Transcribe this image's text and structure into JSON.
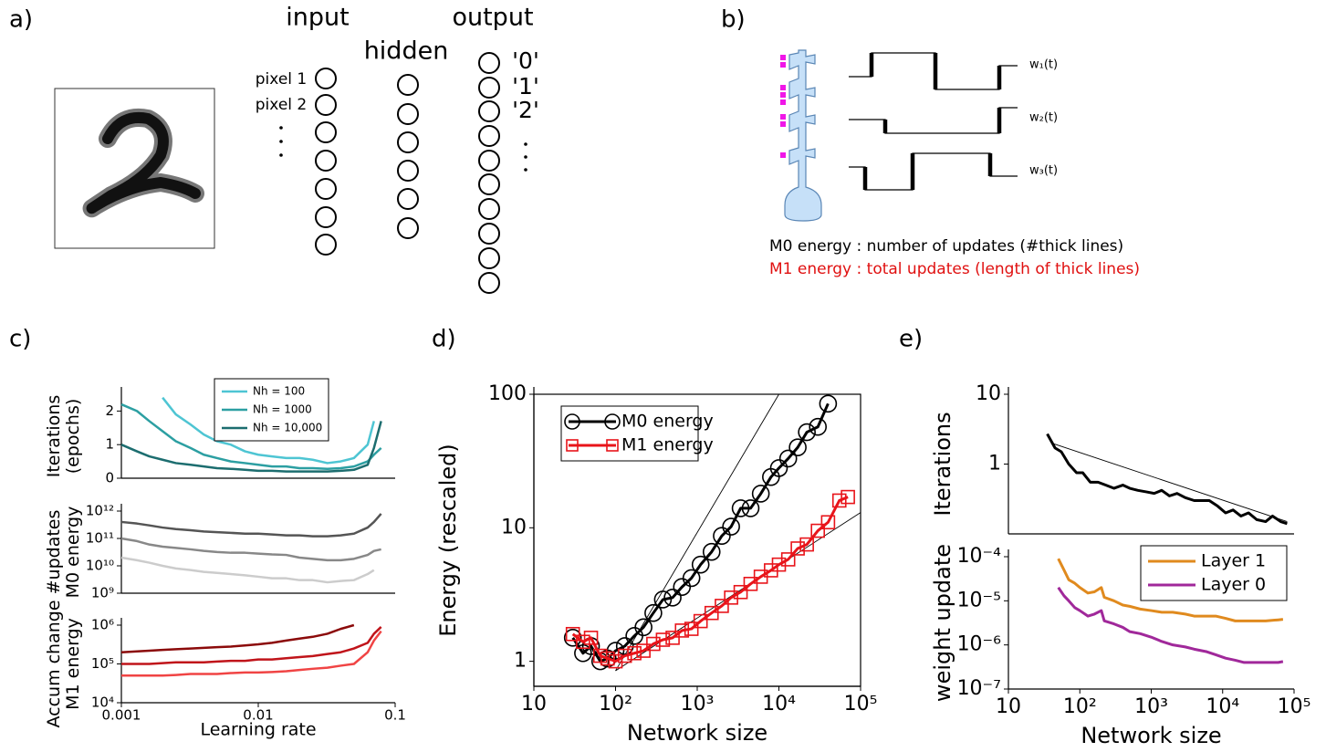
{
  "panel_labels": [
    "a)",
    "b)",
    "c)",
    "d)",
    "e)"
  ],
  "diagram_a": {
    "layers": [
      "input",
      "hidden",
      "output"
    ],
    "inputs": [
      "pixel 1",
      "pixel 2"
    ],
    "outputs": [
      "'0'",
      "'1'",
      "'2'"
    ]
  },
  "diagram_b": {
    "weights": [
      "w₁(t)",
      "w₂(t)",
      "w₃(t)"
    ],
    "m0": "M0 energy : number of updates (#thick lines)",
    "m1": "M1 energy : total updates (length of thick lines)"
  },
  "chart_data": [
    {
      "type": "line",
      "y_label": [
        "Iterations",
        "(epochs)"
      ],
      "xlog": true,
      "xlim": [
        0.001,
        0.1
      ],
      "ylim": [
        0,
        2.5
      ],
      "yticks": [
        0,
        1,
        2
      ],
      "legend": "upper right",
      "x": [
        0.001,
        0.0013,
        0.0016,
        0.002,
        0.0025,
        0.0032,
        0.004,
        0.005,
        0.0063,
        0.008,
        0.01,
        0.0126,
        0.016,
        0.02,
        0.025,
        0.032,
        0.04,
        0.05,
        0.063,
        0.07,
        0.079
      ],
      "series": [
        {
          "name": "Nh = 100",
          "color": "#4ec5d3",
          "values": [
            null,
            null,
            null,
            2.4,
            1.9,
            1.6,
            1.3,
            1.1,
            1.0,
            0.8,
            0.7,
            0.65,
            0.6,
            0.6,
            0.55,
            0.45,
            0.5,
            0.6,
            1.0,
            1.7,
            null
          ]
        },
        {
          "name": "Nh = 1000",
          "color": "#2c9fa2",
          "values": [
            2.2,
            2.0,
            1.7,
            1.4,
            1.1,
            0.9,
            0.7,
            0.6,
            0.5,
            0.45,
            0.4,
            0.35,
            0.35,
            0.3,
            0.3,
            0.28,
            0.3,
            0.35,
            0.5,
            0.7,
            0.9
          ]
        },
        {
          "name": "Nh = 10,000",
          "color": "#1c6d6f",
          "values": [
            1.0,
            0.8,
            0.65,
            0.55,
            0.45,
            0.4,
            0.35,
            0.3,
            0.28,
            0.25,
            0.22,
            0.22,
            0.2,
            0.2,
            0.2,
            0.2,
            0.22,
            0.25,
            0.4,
            0.9,
            1.7
          ]
        }
      ]
    },
    {
      "type": "line",
      "y_label": [
        "#updates",
        "M0 energy"
      ],
      "xlog": true,
      "ylog": true,
      "xlim": [
        0.001,
        0.1
      ],
      "ylim": [
        1000000000.0,
        1000000000000.0
      ],
      "yticks": [
        {
          "value": 1000000000.0,
          "label": "10⁹"
        },
        {
          "value": 10000000000.0,
          "label": "10¹⁰"
        },
        {
          "value": 100000000000.0,
          "label": "10¹¹"
        },
        {
          "value": 1000000000000.0,
          "label": "10¹²"
        }
      ],
      "x": [
        0.001,
        0.0013,
        0.0016,
        0.002,
        0.0025,
        0.0032,
        0.004,
        0.005,
        0.0063,
        0.008,
        0.01,
        0.0126,
        0.016,
        0.02,
        0.025,
        0.032,
        0.04,
        0.05,
        0.063,
        0.07,
        0.079
      ],
      "series": [
        {
          "color": "#555555",
          "values": [
            400000000000.0,
            350000000000.0,
            300000000000.0,
            250000000000.0,
            220000000000.0,
            200000000000.0,
            180000000000.0,
            170000000000.0,
            160000000000.0,
            150000000000.0,
            150000000000.0,
            140000000000.0,
            130000000000.0,
            130000000000.0,
            120000000000.0,
            120000000000.0,
            130000000000.0,
            150000000000.0,
            250000000000.0,
            400000000000.0,
            800000000000.0
          ]
        },
        {
          "color": "#888888",
          "values": [
            100000000000.0,
            80000000000.0,
            60000000000.0,
            50000000000.0,
            45000000000.0,
            40000000000.0,
            35000000000.0,
            32000000000.0,
            30000000000.0,
            30000000000.0,
            28000000000.0,
            26000000000.0,
            25000000000.0,
            20000000000.0,
            18000000000.0,
            16000000000.0,
            16000000000.0,
            18000000000.0,
            25000000000.0,
            35000000000.0,
            40000000000.0
          ]
        },
        {
          "color": "#cccccc",
          "values": [
            20000000000.0,
            16000000000.0,
            13000000000.0,
            10000000000.0,
            8000000000.0,
            7000000000.0,
            6000000000.0,
            5500000000.0,
            5000000000.0,
            4500000000.0,
            4000000000.0,
            3500000000.0,
            3500000000.0,
            3000000000.0,
            3000000000.0,
            2500000000.0,
            2800000000.0,
            3000000000.0,
            5000000000.0,
            7000000000.0,
            null
          ]
        }
      ]
    },
    {
      "type": "line",
      "y_label": [
        "Accum change",
        "M1 energy"
      ],
      "x_label": "Learning rate",
      "xlog": true,
      "ylog": true,
      "xlim": [
        0.001,
        0.1
      ],
      "ylim": [
        10000.0,
        1000000.0
      ],
      "xticks": [
        0.001,
        0.01,
        0.1
      ],
      "yticks": [
        {
          "value": 10000.0,
          "label": "10⁴"
        },
        {
          "value": 100000.0,
          "label": "10⁵"
        },
        {
          "value": 1000000.0,
          "label": "10⁶"
        }
      ],
      "x": [
        0.001,
        0.0013,
        0.0016,
        0.002,
        0.0025,
        0.0032,
        0.004,
        0.005,
        0.0063,
        0.008,
        0.01,
        0.0126,
        0.016,
        0.02,
        0.025,
        0.032,
        0.04,
        0.05,
        0.063,
        0.07,
        0.079
      ],
      "series": [
        {
          "color": "#8b0a0a",
          "values": [
            200000.0,
            210000.0,
            220000.0,
            230000.0,
            240000.0,
            250000.0,
            260000.0,
            270000.0,
            280000.0,
            300000.0,
            320000.0,
            350000.0,
            400000.0,
            450000.0,
            500000.0,
            600000.0,
            800000.0,
            1000000.0,
            null,
            null,
            null
          ]
        },
        {
          "color": "#c0141a",
          "values": [
            100000.0,
            100000.0,
            100000.0,
            105000.0,
            110000.0,
            110000.0,
            110000.0,
            115000.0,
            120000.0,
            120000.0,
            130000.0,
            130000.0,
            140000.0,
            150000.0,
            160000.0,
            180000.0,
            200000.0,
            250000.0,
            350000.0,
            600000.0,
            900000.0
          ]
        },
        {
          "color": "#f04444",
          "values": [
            50000.0,
            50000.0,
            50000.0,
            50000.0,
            52000.0,
            55000.0,
            55000.0,
            55000.0,
            58000.0,
            60000.0,
            60000.0,
            62000.0,
            65000.0,
            70000.0,
            75000.0,
            80000.0,
            90000.0,
            100000.0,
            200000.0,
            400000.0,
            700000.0
          ]
        }
      ]
    },
    {
      "type": "line",
      "x_label": "Network size",
      "y_label": [
        "Energy (rescaled)"
      ],
      "xlog": true,
      "ylog": true,
      "frame": true,
      "legend": "upper left",
      "xlim": [
        10,
        100000
      ],
      "ylim": [
        0.65,
        100
      ],
      "xticks": [
        10,
        {
          "value": 100,
          "label": "10²"
        },
        {
          "value": 1000,
          "label": "10³"
        },
        {
          "value": 10000,
          "label": "10⁴"
        },
        {
          "value": 100000,
          "label": "10⁵"
        }
      ],
      "yticks": [
        1,
        10,
        100
      ],
      "x": [
        30,
        40,
        50,
        65,
        80,
        100,
        130,
        170,
        220,
        290,
        380,
        500,
        650,
        850,
        1100,
        1500,
        2000,
        2600,
        3400,
        4500,
        6000,
        8000,
        10000,
        13000,
        17000,
        22000,
        30000,
        40000
      ],
      "series": [
        {
          "name": "M0 energy",
          "color": "#000000",
          "marker": "circle",
          "values": [
            1.5,
            1.15,
            1.3,
            1.0,
            1.05,
            1.2,
            1.3,
            1.55,
            1.8,
            2.3,
            2.9,
            3.0,
            3.6,
            4.2,
            5.3,
            6.6,
            8.7,
            10.2,
            14,
            14,
            18,
            24,
            28,
            33,
            40,
            52,
            57,
            85
          ]
        },
        {
          "name": "M1 energy",
          "color": "#e8141a",
          "marker": "square",
          "x": [
            30,
            40,
            50,
            65,
            80,
            100,
            130,
            170,
            220,
            290,
            380,
            500,
            650,
            850,
            1100,
            1500,
            2000,
            2600,
            3400,
            4500,
            6000,
            8000,
            10000,
            13000,
            17000,
            22000,
            30000,
            40000,
            55000,
            70000
          ],
          "values": [
            1.6,
            1.4,
            1.5,
            1.1,
            1.05,
            1.0,
            1.1,
            1.15,
            1.2,
            1.35,
            1.45,
            1.5,
            1.7,
            1.75,
            2.0,
            2.3,
            2.6,
            3.0,
            3.3,
            3.8,
            4.3,
            4.8,
            5.3,
            5.8,
            7.0,
            7.5,
            9.5,
            11,
            16,
            17
          ]
        }
      ],
      "fits": [
        {
          "x": [
            100,
            10000
          ],
          "values": [
            0.85,
            100
          ]
        },
        {
          "x": [
            100,
            100000
          ],
          "values": [
            0.85,
            13
          ]
        }
      ]
    },
    {
      "type": "line",
      "y_label": [
        "Iterations"
      ],
      "xlog": true,
      "ylog": true,
      "xlim": [
        10,
        100000
      ],
      "ylim": [
        0.1,
        10
      ],
      "yticks": [
        1,
        10
      ],
      "x": [
        35,
        45,
        55,
        70,
        90,
        110,
        140,
        180,
        230,
        300,
        400,
        500,
        650,
        850,
        1100,
        1400,
        1800,
        2300,
        3000,
        4000,
        5000,
        6500,
        8500,
        11000,
        14000,
        18000,
        23000,
        30000,
        40000,
        50000,
        65000,
        80000
      ],
      "series": [
        {
          "color": "#000000",
          "values": [
            2.7,
            1.7,
            1.5,
            1.0,
            0.75,
            0.75,
            0.55,
            0.55,
            0.5,
            0.45,
            0.5,
            0.45,
            0.42,
            0.4,
            0.38,
            0.42,
            0.35,
            0.38,
            0.33,
            0.3,
            0.3,
            0.3,
            0.25,
            0.2,
            0.22,
            0.18,
            0.2,
            0.16,
            0.15,
            0.18,
            0.15,
            0.14
          ]
        }
      ],
      "fits": [
        {
          "x": [
            40,
            80000
          ],
          "values": [
            2,
            0.15
          ]
        }
      ]
    },
    {
      "type": "line",
      "x_label": "Network size",
      "y_label": [
        "weight update"
      ],
      "xlog": true,
      "ylog": true,
      "legend": "upper right",
      "xlim": [
        10,
        100000
      ],
      "ylim": [
        1e-07,
        0.0001
      ],
      "xticks": [
        10,
        {
          "value": 100,
          "label": "10²"
        },
        {
          "value": 1000,
          "label": "10³"
        },
        {
          "value": 10000,
          "label": "10⁴"
        },
        {
          "value": 100000,
          "label": "10⁵"
        }
      ],
      "yticks": [
        {
          "value": 1e-07,
          "label": "10⁻⁷"
        },
        {
          "value": 1e-06,
          "label": "10⁻⁶"
        },
        {
          "value": 1e-05,
          "label": "10⁻⁵"
        },
        {
          "value": 0.0001,
          "label": "10⁻⁴"
        }
      ],
      "x": [
        50,
        60,
        70,
        85,
        100,
        130,
        160,
        200,
        220,
        300,
        400,
        500,
        700,
        1000,
        1400,
        2000,
        3000,
        4000,
        6000,
        8000,
        11000,
        15000,
        20000,
        30000,
        40000,
        60000,
        70000
      ],
      "series": [
        {
          "name": "Layer 1",
          "color": "#e08a1e",
          "values": [
            9e-05,
            5e-05,
            3e-05,
            2.5e-05,
            2e-05,
            1.5e-05,
            1.6e-05,
            2e-05,
            1.2e-05,
            1e-05,
            8e-06,
            7.5e-06,
            6.5e-06,
            6e-06,
            5.5e-06,
            5.5e-06,
            5e-06,
            4.5e-06,
            4.5e-06,
            4.5e-06,
            4e-06,
            3.5e-06,
            3.5e-06,
            3.5e-06,
            3.5e-06,
            3.7e-06,
            3.8e-06
          ]
        },
        {
          "name": "Layer 0",
          "color": "#a0289a",
          "values": [
            2e-05,
            1.3e-05,
            1e-05,
            7e-06,
            6e-06,
            4.5e-06,
            5e-06,
            6e-06,
            3.5e-06,
            3e-06,
            2.5e-06,
            2e-06,
            1.8e-06,
            1.5e-06,
            1.2e-06,
            1e-06,
            9e-07,
            8e-07,
            7e-07,
            6e-07,
            5e-07,
            4.5e-07,
            4e-07,
            4e-07,
            4e-07,
            4e-07,
            4.2e-07
          ]
        }
      ]
    }
  ]
}
